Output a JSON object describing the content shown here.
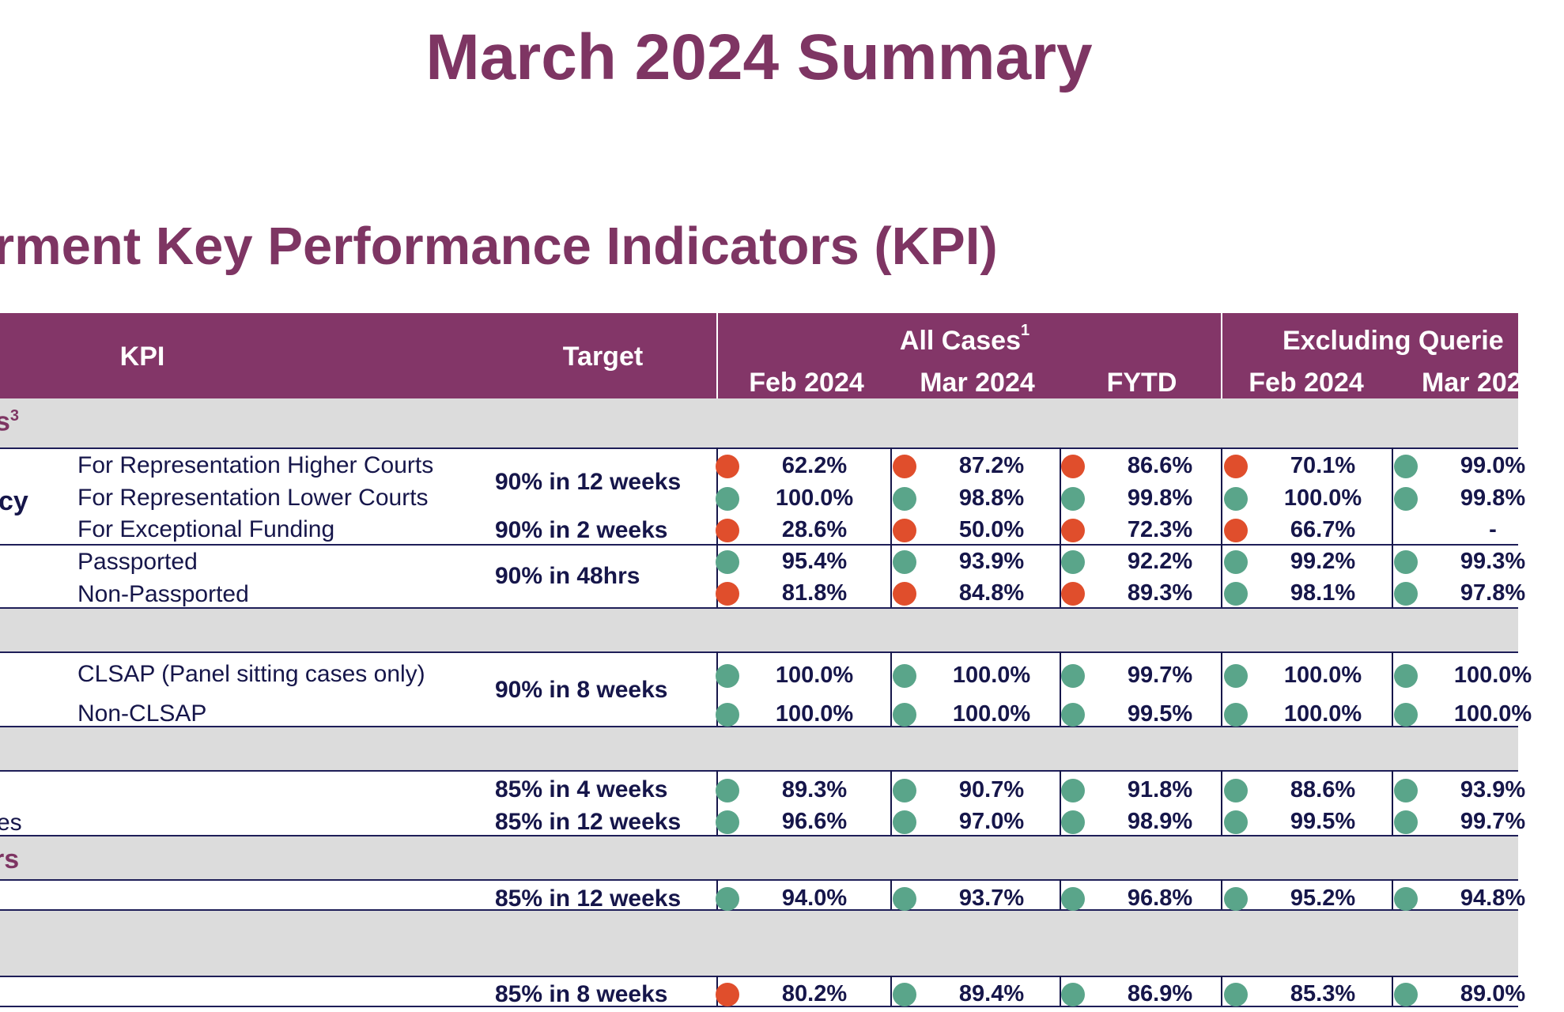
{
  "title": "March 2024 Summary",
  "section_heading": "rment Key Performance Indicators (KPI)",
  "colors": {
    "accent": "#833668",
    "status_red": "#e04e2c",
    "status_green": "#5aa58a",
    "band_gray": "#dcdcdc",
    "text": "#16164a"
  },
  "table": {
    "headers": {
      "kpi": "KPI",
      "target": "Target",
      "all_cases": "All Cases",
      "all_cases_note": "1",
      "excluding": "Excluding Querie",
      "all_feb": "Feb 2024",
      "all_mar": "Mar 2024",
      "all_fytd": "FYTD",
      "ex_feb": "Feb 2024",
      "ex_mar": "Mar 202"
    },
    "cut_labels": {
      "group1_marker": "s",
      "group1_note": "3",
      "group1_fragment": "cy",
      "row_fragment_es": "es",
      "group5_marker": "rs"
    },
    "rows": [
      {
        "label": "For Representation Higher Courts",
        "cells": [
          {
            "v": "62.2%",
            "s": "red"
          },
          {
            "v": "87.2%",
            "s": "red"
          },
          {
            "v": "86.6%",
            "s": "red"
          },
          {
            "v": "70.1%",
            "s": "red"
          },
          {
            "v": "99.0%",
            "s": "green"
          }
        ]
      },
      {
        "label": "For Representation Lower Courts",
        "cells": [
          {
            "v": "100.0%",
            "s": "green"
          },
          {
            "v": "98.8%",
            "s": "green"
          },
          {
            "v": "99.8%",
            "s": "green"
          },
          {
            "v": "100.0%",
            "s": "green"
          },
          {
            "v": "99.8%",
            "s": "green"
          }
        ]
      },
      {
        "label": "For Exceptional Funding",
        "target": "90% in 2 weeks",
        "cells": [
          {
            "v": "28.6%",
            "s": "red"
          },
          {
            "v": "50.0%",
            "s": "red"
          },
          {
            "v": "72.3%",
            "s": "red"
          },
          {
            "v": "66.7%",
            "s": "red"
          },
          {
            "v": "-",
            "s": ""
          }
        ]
      },
      {
        "label": "Passported",
        "cells": [
          {
            "v": "95.4%",
            "s": "green"
          },
          {
            "v": "93.9%",
            "s": "green"
          },
          {
            "v": "92.2%",
            "s": "green"
          },
          {
            "v": "99.2%",
            "s": "green"
          },
          {
            "v": "99.3%",
            "s": "green"
          }
        ]
      },
      {
        "label": "Non-Passported",
        "cells": [
          {
            "v": "81.8%",
            "s": "red"
          },
          {
            "v": "84.8%",
            "s": "red"
          },
          {
            "v": "89.3%",
            "s": "red"
          },
          {
            "v": "98.1%",
            "s": "green"
          },
          {
            "v": "97.8%",
            "s": "green"
          }
        ]
      },
      {
        "label": "CLSAP (Panel sitting cases only)",
        "cells": [
          {
            "v": "100.0%",
            "s": "green"
          },
          {
            "v": "100.0%",
            "s": "green"
          },
          {
            "v": "99.7%",
            "s": "green"
          },
          {
            "v": "100.0%",
            "s": "green"
          },
          {
            "v": "100.0%",
            "s": "green"
          }
        ]
      },
      {
        "label": "Non-CLSAP",
        "cells": [
          {
            "v": "100.0%",
            "s": "green"
          },
          {
            "v": "100.0%",
            "s": "green"
          },
          {
            "v": "99.5%",
            "s": "green"
          },
          {
            "v": "100.0%",
            "s": "green"
          },
          {
            "v": "100.0%",
            "s": "green"
          }
        ]
      },
      {
        "target": "85% in 4 weeks",
        "cells": [
          {
            "v": "89.3%",
            "s": "green"
          },
          {
            "v": "90.7%",
            "s": "green"
          },
          {
            "v": "91.8%",
            "s": "green"
          },
          {
            "v": "88.6%",
            "s": "green"
          },
          {
            "v": "93.9%",
            "s": "green"
          }
        ]
      },
      {
        "target": "85% in 12 weeks",
        "cells": [
          {
            "v": "96.6%",
            "s": "green"
          },
          {
            "v": "97.0%",
            "s": "green"
          },
          {
            "v": "98.9%",
            "s": "green"
          },
          {
            "v": "99.5%",
            "s": "green"
          },
          {
            "v": "99.7%",
            "s": "green"
          }
        ]
      },
      {
        "target": "85% in 12 weeks",
        "cells": [
          {
            "v": "94.0%",
            "s": "green"
          },
          {
            "v": "93.7%",
            "s": "green"
          },
          {
            "v": "96.8%",
            "s": "green"
          },
          {
            "v": "95.2%",
            "s": "green"
          },
          {
            "v": "94.8%",
            "s": "green"
          }
        ]
      },
      {
        "target": "85% in 8 weeks",
        "cells": [
          {
            "v": "80.2%",
            "s": "red"
          },
          {
            "v": "89.4%",
            "s": "green"
          },
          {
            "v": "86.9%",
            "s": "green"
          },
          {
            "v": "85.3%",
            "s": "green"
          },
          {
            "v": "89.0%",
            "s": "green"
          }
        ]
      }
    ],
    "group_targets": {
      "g1": "90% in 12 weeks",
      "g2": "90% in 48hrs",
      "g3": "90% in 8 weeks"
    }
  }
}
